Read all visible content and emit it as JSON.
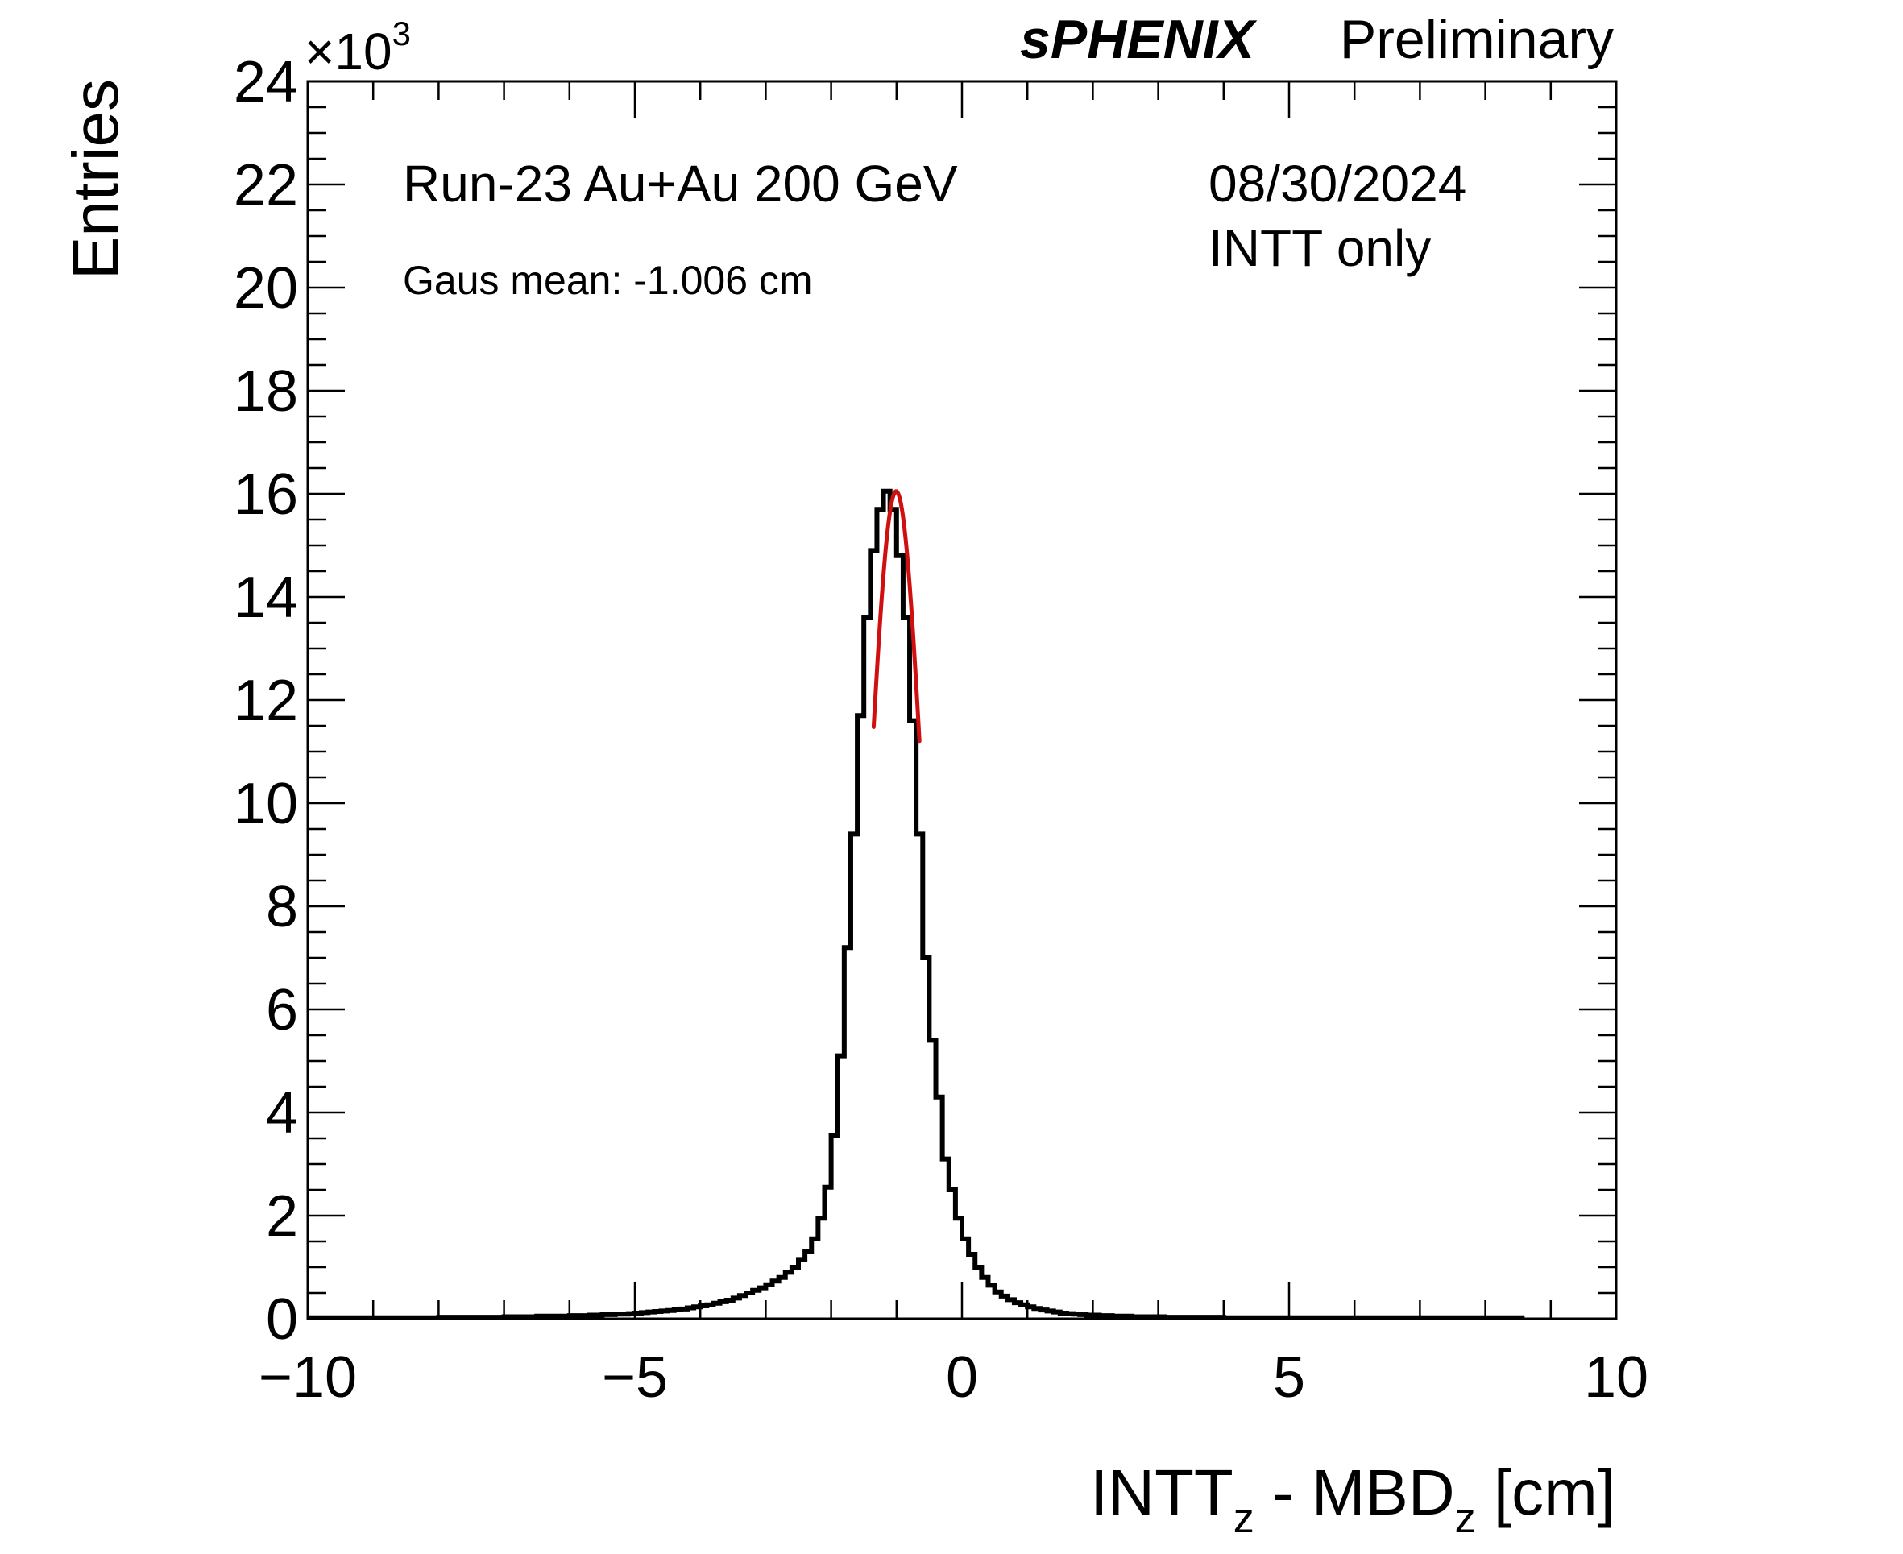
{
  "chart_data": {
    "type": "histogram",
    "title": "",
    "header": {
      "experiment": "sPHENIX",
      "status": "Preliminary"
    },
    "annotations": {
      "run": "Run-23 Au+Au 200 GeV",
      "date": "08/30/2024",
      "detector": "INTT only",
      "fit_result": "Gaus mean: -1.006 cm"
    },
    "xlabel": {
      "main": "INTT",
      "sub1": "z",
      "mid": " - MBD",
      "sub2": "z",
      "unit": " [cm]"
    },
    "ylabel": "Entries",
    "y_multiplier": {
      "prefix": "×10",
      "exponent": "3"
    },
    "xlim": [
      -10,
      10
    ],
    "ylim": [
      0,
      24
    ],
    "x_major_ticks": [
      -10,
      -5,
      0,
      5,
      10
    ],
    "x_tick_labels": [
      "−10",
      "−5",
      "0",
      "5",
      "10"
    ],
    "y_major_ticks": [
      0,
      2,
      4,
      6,
      8,
      10,
      12,
      14,
      16,
      18,
      20,
      22,
      24
    ],
    "y_tick_labels": [
      "0",
      "2",
      "4",
      "6",
      "8",
      "10",
      "12",
      "14",
      "16",
      "18",
      "20",
      "22",
      "24"
    ],
    "bin_width": 0.1,
    "bins_x_low": [
      -10.0,
      -9.9,
      -9.8,
      -9.7,
      -9.6,
      -9.5,
      -9.4,
      -9.3,
      -9.2,
      -9.1,
      -9.0,
      -8.9,
      -8.8,
      -8.7,
      -8.6,
      -8.5,
      -8.4,
      -8.3,
      -8.2,
      -8.1,
      -8.0,
      -7.9,
      -7.8,
      -7.7,
      -7.6,
      -7.5,
      -7.4,
      -7.3,
      -7.2,
      -7.1,
      -7.0,
      -6.9,
      -6.8,
      -6.7,
      -6.6,
      -6.5,
      -6.4,
      -6.3,
      -6.2,
      -6.1,
      -6.0,
      -5.9,
      -5.8,
      -5.7,
      -5.6,
      -5.5,
      -5.4,
      -5.3,
      -5.2,
      -5.1,
      -5.0,
      -4.9,
      -4.8,
      -4.7,
      -4.6,
      -4.5,
      -4.4,
      -4.3,
      -4.2,
      -4.1,
      -4.0,
      -3.9,
      -3.8,
      -3.7,
      -3.6,
      -3.5,
      -3.4,
      -3.3,
      -3.2,
      -3.1,
      -3.0,
      -2.9,
      -2.8,
      -2.7,
      -2.6,
      -2.5,
      -2.4,
      -2.3,
      -2.2,
      -2.1,
      -2.0,
      -1.9,
      -1.8,
      -1.7,
      -1.6,
      -1.5,
      -1.4,
      -1.3,
      -1.2,
      -1.1,
      -1.0,
      -0.9,
      -0.8,
      -0.7,
      -0.6,
      -0.5,
      -0.4,
      -0.3,
      -0.2,
      -0.1,
      0.0,
      0.1,
      0.2,
      0.3,
      0.4,
      0.5,
      0.6,
      0.7,
      0.8,
      0.9,
      1.0,
      1.1,
      1.2,
      1.3,
      1.4,
      1.5,
      1.6,
      1.7,
      1.8,
      1.9,
      2.0,
      2.1,
      2.2,
      2.3,
      2.4,
      2.5,
      2.6,
      2.7,
      2.8,
      2.9,
      3.0,
      3.1,
      3.2,
      3.3,
      3.4,
      3.5,
      3.6,
      3.7,
      3.8,
      3.9,
      4.0,
      4.1,
      4.2,
      4.3,
      4.4,
      4.5,
      4.6,
      4.7,
      4.8,
      4.9,
      5.0,
      5.1,
      5.2,
      5.3,
      5.4,
      5.5,
      5.6,
      5.7,
      5.8,
      5.9,
      6.0,
      6.1,
      6.2,
      6.3,
      6.4,
      6.5,
      6.6,
      6.7,
      6.8,
      6.9,
      7.0,
      7.1,
      7.2,
      7.3,
      7.4,
      7.5,
      7.6,
      7.7,
      7.8,
      7.9,
      8.0,
      8.1,
      8.2,
      8.3,
      8.4,
      8.5,
      8.6,
      8.7,
      8.8,
      8.9,
      9.0,
      9.1,
      9.2,
      9.3,
      9.4,
      9.5,
      9.6,
      9.7,
      9.8,
      9.9
    ],
    "counts_x1000": [
      0.02,
      0.02,
      0.02,
      0.02,
      0.02,
      0.02,
      0.02,
      0.02,
      0.02,
      0.02,
      0.02,
      0.02,
      0.02,
      0.02,
      0.02,
      0.02,
      0.02,
      0.02,
      0.02,
      0.02,
      0.03,
      0.03,
      0.03,
      0.03,
      0.03,
      0.03,
      0.03,
      0.03,
      0.03,
      0.03,
      0.04,
      0.04,
      0.04,
      0.04,
      0.04,
      0.05,
      0.05,
      0.05,
      0.05,
      0.05,
      0.06,
      0.06,
      0.06,
      0.07,
      0.07,
      0.08,
      0.08,
      0.09,
      0.09,
      0.1,
      0.11,
      0.12,
      0.13,
      0.14,
      0.15,
      0.16,
      0.18,
      0.19,
      0.21,
      0.23,
      0.25,
      0.27,
      0.3,
      0.33,
      0.36,
      0.4,
      0.45,
      0.5,
      0.55,
      0.6,
      0.66,
      0.73,
      0.8,
      0.9,
      1.0,
      1.15,
      1.3,
      1.55,
      1.95,
      2.55,
      3.55,
      5.1,
      7.2,
      9.4,
      11.7,
      13.6,
      14.9,
      15.7,
      16.05,
      15.7,
      14.8,
      13.6,
      11.6,
      9.4,
      7.0,
      5.4,
      4.3,
      3.1,
      2.5,
      1.95,
      1.55,
      1.25,
      1.0,
      0.8,
      0.65,
      0.52,
      0.44,
      0.37,
      0.31,
      0.27,
      0.23,
      0.2,
      0.17,
      0.15,
      0.13,
      0.11,
      0.1,
      0.09,
      0.08,
      0.07,
      0.07,
      0.06,
      0.06,
      0.05,
      0.05,
      0.05,
      0.04,
      0.04,
      0.04,
      0.04,
      0.04,
      0.03,
      0.03,
      0.03,
      0.03,
      0.03,
      0.03,
      0.03,
      0.03,
      0.03,
      0.02,
      0.02,
      0.02,
      0.02,
      0.02,
      0.02,
      0.02,
      0.02,
      0.02,
      0.02,
      0.02,
      0.02,
      0.02,
      0.02,
      0.02,
      0.02,
      0.02,
      0.02,
      0.02,
      0.02,
      0.02,
      0.02,
      0.02,
      0.02,
      0.02,
      0.02,
      0.02,
      0.02,
      0.02,
      0.02,
      0.02,
      0.02,
      0.02,
      0.02,
      0.02,
      0.02,
      0.02,
      0.02,
      0.02,
      0.02,
      0.02,
      0.02,
      0.02,
      0.02,
      0.02,
      0.02
    ],
    "fit": {
      "function": "gaus",
      "color": "#d01010",
      "mean": -1.006,
      "sigma": 0.42,
      "amplitude_x1000": 16.05,
      "range": [
        -1.35,
        -0.65
      ]
    },
    "colors": {
      "histogram": "#000000",
      "fit": "#d01010",
      "axes": "#000000"
    }
  }
}
